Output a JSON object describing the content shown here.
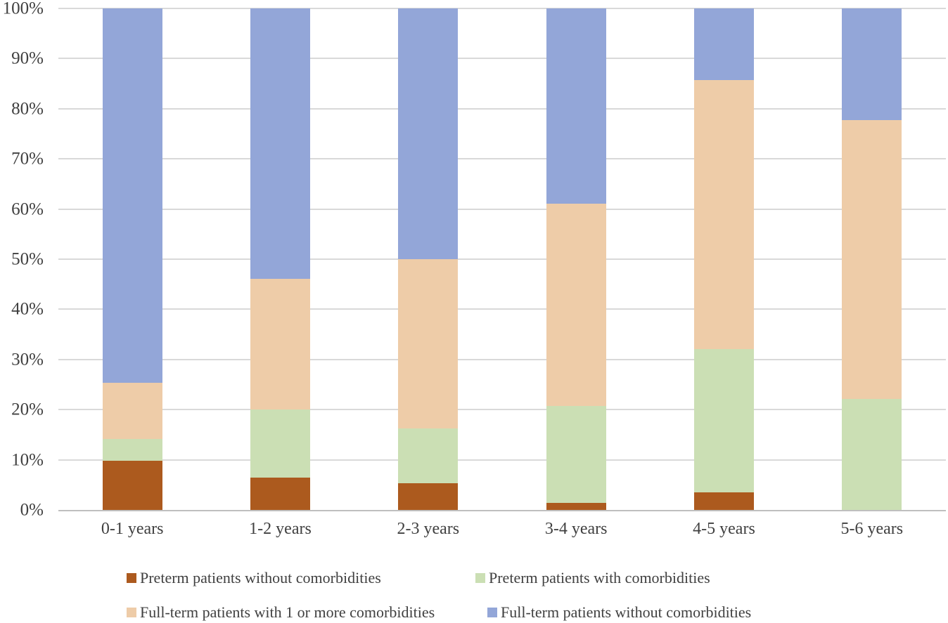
{
  "chart_data": {
    "type": "bar",
    "variant": "stacked-100-percent",
    "title": "",
    "xlabel": "",
    "ylabel": "",
    "ylim": [
      0,
      100
    ],
    "grid": true,
    "gridline_color": "#D9D9D9",
    "axis_line_color": "#BFBFBF",
    "text_color": "#404040",
    "yticks": [
      "0%",
      "10%",
      "20%",
      "30%",
      "40%",
      "50%",
      "60%",
      "70%",
      "80%",
      "90%",
      "100%"
    ],
    "categories": [
      "0-1 years",
      "1-2 years",
      "2-3 years",
      "3-4 years",
      "4-5 years",
      "5-6 years"
    ],
    "series": [
      {
        "name": "Preterm patients without comorbidities",
        "color": "#AC5A1E",
        "values": [
          9.8,
          6.4,
          5.3,
          1.4,
          3.5,
          0
        ]
      },
      {
        "name": "Preterm patients with comorbidities",
        "color": "#CBDFB4",
        "values": [
          4.3,
          13.6,
          10.9,
          19.4,
          28.6,
          22.1
        ]
      },
      {
        "name": "Full-term patients with 1 or more comorbidities",
        "color": "#EECCA8",
        "values": [
          11.3,
          26.1,
          33.8,
          40.2,
          53.6,
          55.7
        ]
      },
      {
        "name": "Full-term patients without comorbidities",
        "color": "#93A6D8",
        "values": [
          74.6,
          53.9,
          50.0,
          39.0,
          14.3,
          22.2
        ]
      }
    ],
    "legend_position": "bottom",
    "legend_rows": [
      [
        0,
        1
      ],
      [
        2,
        3
      ]
    ]
  }
}
